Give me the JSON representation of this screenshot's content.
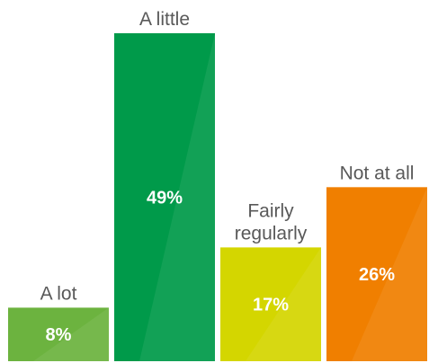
{
  "chart_data": {
    "type": "bar",
    "categories": [
      "A lot",
      "A little",
      "Fairly regularly",
      "Not at all"
    ],
    "category_lines": [
      [
        "A lot"
      ],
      [
        "A little"
      ],
      [
        "Fairly",
        "regularly"
      ],
      [
        "Not at all"
      ]
    ],
    "values": [
      8,
      49,
      17,
      26
    ],
    "value_labels": [
      "8%",
      "49%",
      "17%",
      "26%"
    ],
    "colors": [
      "#6cb33f",
      "#009a4a",
      "#d4d600",
      "#f07f00"
    ],
    "ylim": [
      0,
      49
    ],
    "grid": false,
    "legend": "none"
  }
}
